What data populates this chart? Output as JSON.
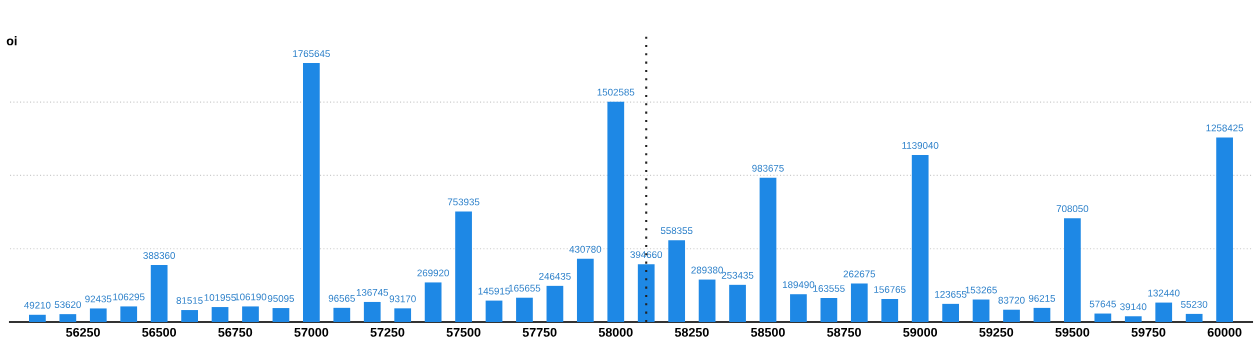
{
  "chart_data": {
    "type": "bar",
    "ylabel": "oi",
    "x": [
      56100,
      56200,
      56300,
      56400,
      56500,
      56600,
      56700,
      56800,
      56900,
      57000,
      57100,
      57200,
      57300,
      57400,
      57500,
      57600,
      57700,
      57800,
      57900,
      58000,
      58100,
      58200,
      58300,
      58400,
      58500,
      58600,
      58700,
      58800,
      58900,
      59000,
      59100,
      59200,
      59300,
      59400,
      59500,
      59600,
      59700,
      59800,
      59900,
      60000
    ],
    "values": [
      49210,
      53620,
      92435,
      106295,
      388360,
      81515,
      101955,
      106190,
      95095,
      1765645,
      96565,
      136745,
      93170,
      269920,
      753935,
      145915,
      165655,
      246435,
      430780,
      1502585,
      394660,
      558355,
      289380,
      253435,
      983675,
      189490,
      163555,
      262675,
      156765,
      1139040,
      123655,
      153265,
      83720,
      96215,
      708050,
      57645,
      39140,
      132440,
      55230,
      1258425
    ],
    "color": "#1e88e5",
    "data_labels": true,
    "xlim": [
      56010,
      60090
    ],
    "xticks": [
      56250,
      56500,
      56750,
      57000,
      57250,
      57500,
      57750,
      58000,
      58250,
      58500,
      58750,
      59000,
      59250,
      59500,
      59750,
      60000
    ],
    "yticks": [
      {
        "value": 0,
        "label": null
      },
      {
        "value": 500000,
        "label": null
      },
      {
        "value": 1000000,
        "label": null
      },
      {
        "value": 1500000,
        "label": null
      }
    ],
    "tick_labels": "x",
    "grid": "y",
    "ref_lines": [
      {
        "axis": "x",
        "value": 58100,
        "label": null,
        "color": "#222222",
        "line_style": "dotted"
      }
    ]
  }
}
